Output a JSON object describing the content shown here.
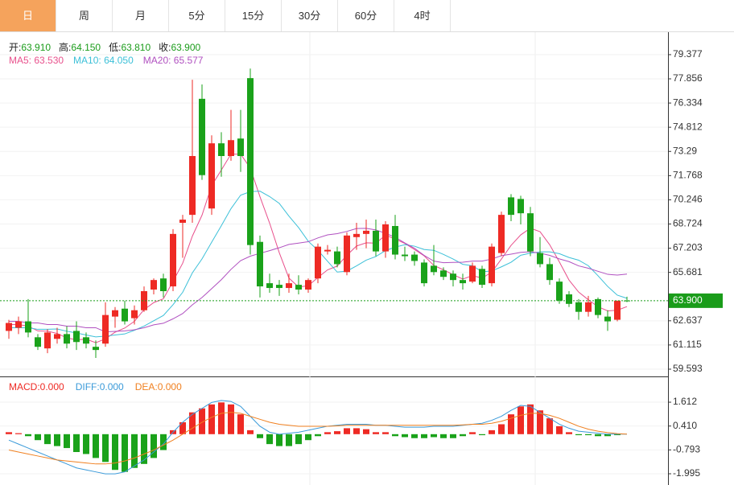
{
  "tabs": [
    "日",
    "周",
    "月",
    "5分",
    "15分",
    "30分",
    "60分",
    "4时"
  ],
  "active_tab": 0,
  "header": [
    {
      "label": "开:",
      "value": "63.910"
    },
    {
      "label": "高:",
      "value": "64.150"
    },
    {
      "label": "低:",
      "value": "63.810"
    },
    {
      "label": "收:",
      "value": "63.900"
    }
  ],
  "header_value_color": "#1a9c1a",
  "chart_data": [
    {
      "type": "candlestick",
      "open": [
        62.0,
        62.2,
        62.6,
        61.6,
        60.9,
        61.5,
        61.8,
        62.0,
        61.6,
        61.0,
        61.2,
        62.9,
        63.4,
        62.8,
        63.3,
        64.6,
        65.3,
        64.8,
        68.8,
        69.3,
        76.6,
        69.7,
        73.8,
        73.0,
        74.1,
        77.9,
        67.6,
        65.0,
        64.9,
        64.7,
        64.9,
        64.6,
        65.3,
        67.0,
        67.0,
        65.7,
        67.9,
        68.1,
        68.3,
        67.0,
        68.6,
        66.8,
        66.8,
        66.3,
        66.1,
        65.8,
        65.6,
        65.2,
        65.1,
        65.9,
        65.0,
        66.9,
        70.4,
        70.3,
        69.4,
        66.9,
        66.2,
        65.1,
        64.3,
        63.8,
        63.2,
        64.0,
        62.9,
        62.7,
        63.91
      ],
      "high": [
        62.7,
        62.9,
        64.0,
        61.8,
        62.1,
        62.2,
        62.3,
        62.6,
        61.9,
        61.4,
        63.8,
        63.5,
        63.9,
        63.6,
        64.8,
        65.3,
        65.6,
        68.4,
        69.3,
        77.8,
        77.5,
        74.3,
        74.5,
        75.9,
        75.9,
        78.5,
        68.0,
        65.6,
        65.2,
        65.6,
        65.5,
        65.3,
        67.5,
        67.4,
        67.3,
        68.2,
        68.8,
        69.0,
        69.0,
        68.9,
        69.3,
        67.3,
        67.0,
        66.5,
        67.4,
        66.0,
        65.8,
        65.6,
        66.3,
        66.1,
        67.5,
        69.5,
        70.6,
        70.5,
        69.8,
        67.9,
        66.6,
        65.3,
        64.5,
        64.0,
        64.2,
        64.1,
        63.3,
        63.9,
        64.15
      ],
      "low": [
        61.5,
        61.8,
        61.6,
        60.8,
        60.6,
        61.2,
        60.9,
        60.8,
        60.9,
        60.3,
        61.0,
        62.2,
        62.4,
        62.4,
        63.2,
        64.3,
        64.1,
        64.5,
        66.6,
        68.8,
        71.5,
        69.3,
        71.7,
        72.7,
        72.0,
        66.8,
        64.1,
        64.4,
        64.2,
        64.4,
        64.3,
        64.4,
        65.0,
        66.8,
        66.0,
        65.5,
        67.1,
        67.2,
        66.7,
        66.6,
        66.5,
        66.4,
        66.1,
        64.8,
        65.5,
        65.2,
        64.8,
        64.6,
        65.0,
        64.7,
        64.8,
        66.7,
        68.9,
        68.7,
        66.7,
        66.0,
        64.9,
        63.7,
        63.5,
        62.7,
        62.9,
        62.8,
        62.0,
        62.6,
        63.81
      ],
      "close": [
        62.5,
        62.6,
        61.9,
        61.0,
        61.9,
        61.8,
        61.2,
        61.3,
        61.2,
        60.8,
        63.0,
        63.3,
        62.6,
        63.3,
        64.5,
        65.2,
        64.5,
        68.1,
        69.0,
        73.0,
        71.8,
        73.8,
        73.0,
        74.0,
        73.0,
        67.4,
        64.8,
        64.7,
        64.7,
        65.0,
        64.6,
        65.2,
        67.3,
        67.1,
        66.2,
        68.0,
        68.1,
        68.3,
        67.0,
        68.7,
        66.8,
        66.7,
        66.4,
        65.0,
        65.7,
        65.4,
        65.2,
        65.0,
        66.1,
        64.9,
        67.3,
        69.3,
        69.3,
        69.4,
        67.0,
        66.2,
        65.2,
        63.9,
        63.7,
        63.2,
        63.8,
        63.0,
        62.6,
        63.9,
        63.9
      ],
      "up_color": "#ee2a24",
      "down_color": "#1aa21a",
      "series": [
        {
          "name": "MA5: 63.530",
          "color": "#e8508c",
          "values": [
            62.4,
            62.4,
            62.3,
            62.0,
            61.98,
            61.84,
            61.56,
            61.44,
            61.48,
            61.26,
            61.5,
            61.92,
            62.18,
            62.6,
            63.34,
            63.78,
            64.02,
            65.12,
            66.26,
            67.96,
            69.28,
            71.14,
            72.12,
            73.12,
            73.12,
            72.24,
            70.44,
            68.78,
            66.92,
            65.32,
            64.76,
            64.84,
            65.36,
            65.84,
            66.08,
            66.76,
            67.34,
            67.54,
            67.52,
            68.02,
            67.78,
            67.5,
            67.12,
            66.72,
            66.12,
            65.84,
            65.54,
            65.26,
            65.48,
            65.32,
            65.7,
            66.52,
            67.38,
            68.04,
            68.46,
            68.24,
            67.42,
            66.34,
            65.2,
            64.44,
            63.96,
            63.52,
            63.26,
            63.3,
            63.53
          ]
        },
        {
          "name": "MA10: 64.050",
          "color": "#3cc0d8",
          "values": [
            62.2,
            62.2,
            62.2,
            62.1,
            62.1,
            62.12,
            61.98,
            61.87,
            61.74,
            61.62,
            61.67,
            61.74,
            61.81,
            62.04,
            62.3,
            62.64,
            62.97,
            63.65,
            64.43,
            65.65,
            66.53,
            67.58,
            68.62,
            69.69,
            70.54,
            70.76,
            70.79,
            70.45,
            70.02,
            69.22,
            68.5,
            67.64,
            67.07,
            66.38,
            65.7,
            65.76,
            66.09,
            66.45,
            66.68,
            67.05,
            67.27,
            67.42,
            67.33,
            67.12,
            67.07,
            66.81,
            66.52,
            66.19,
            66.1,
            65.72,
            65.77,
            66.03,
            66.32,
            66.76,
            66.89,
            66.97,
            66.97,
            66.86,
            66.62,
            66.45,
            66.1,
            65.47,
            64.8,
            64.25,
            64.05
          ]
        },
        {
          "name": "MA20: 65.577",
          "color": "#b050c0",
          "values": [
            62.6,
            62.6,
            62.5,
            62.5,
            62.4,
            62.4,
            62.3,
            62.3,
            62.2,
            62.2,
            61.94,
            61.97,
            62.0,
            62.07,
            62.2,
            62.38,
            62.48,
            62.76,
            63.09,
            63.64,
            64.1,
            64.66,
            65.22,
            65.87,
            66.42,
            66.7,
            66.88,
            67.05,
            67.23,
            67.44,
            67.52,
            67.61,
            67.85,
            68.04,
            68.12,
            68.26,
            68.44,
            68.45,
            68.35,
            68.14,
            67.89,
            67.53,
            67.2,
            66.75,
            66.39,
            66.29,
            66.31,
            66.32,
            66.39,
            66.39,
            66.52,
            66.73,
            66.83,
            66.94,
            66.98,
            66.89,
            66.75,
            66.53,
            66.36,
            66.09,
            65.94,
            65.75,
            65.56,
            65.51,
            65.577
          ]
        }
      ],
      "last_price": {
        "value": 63.9,
        "label": "63.900"
      },
      "last_price_color": "#1a9c1a",
      "ylim": [
        59.137,
        80.69
      ],
      "yticks": [
        79.377,
        77.856,
        76.334,
        74.812,
        73.29,
        71.768,
        70.246,
        68.724,
        67.203,
        65.681,
        62.637,
        61.115,
        59.593
      ],
      "ytick_labels_fixed": null,
      "grid": true
    },
    {
      "type": "macd",
      "series": [
        {
          "name": "MACD:0.000",
          "kind": "bar",
          "color": "#ee2a24",
          "negative_color": "#1aa21a",
          "values": [
            0.1,
            0.05,
            -0.1,
            -0.3,
            -0.5,
            -0.6,
            -0.7,
            -0.9,
            -1.0,
            -1.2,
            -1.4,
            -1.8,
            -1.9,
            -1.7,
            -1.5,
            -1.2,
            -0.8,
            0.2,
            0.6,
            1.1,
            1.3,
            1.5,
            1.6,
            1.5,
            1.0,
            0.2,
            -0.2,
            -0.5,
            -0.6,
            -0.6,
            -0.5,
            -0.3,
            -0.1,
            0.1,
            0.15,
            0.3,
            0.3,
            0.25,
            0.1,
            0.1,
            -0.1,
            -0.15,
            -0.2,
            -0.2,
            -0.15,
            -0.2,
            -0.2,
            -0.1,
            0.1,
            -0.05,
            0.2,
            0.5,
            1.0,
            1.4,
            1.5,
            1.2,
            0.8,
            0.4,
            0.1,
            -0.05,
            -0.05,
            -0.1,
            -0.1,
            -0.05,
            0.0
          ]
        },
        {
          "name": "DIFF:0.000",
          "kind": "line",
          "color": "#3a9ad9",
          "values": [
            -0.3,
            -0.5,
            -0.7,
            -0.9,
            -1.1,
            -1.3,
            -1.5,
            -1.7,
            -1.8,
            -1.9,
            -2.0,
            -2.0,
            -1.9,
            -1.6,
            -1.3,
            -0.9,
            -0.5,
            0.1,
            0.6,
            1.0,
            1.3,
            1.6,
            1.7,
            1.65,
            1.4,
            0.9,
            0.4,
            0.1,
            0.0,
            0.05,
            0.1,
            0.2,
            0.3,
            0.4,
            0.45,
            0.5,
            0.5,
            0.5,
            0.45,
            0.45,
            0.4,
            0.35,
            0.35,
            0.35,
            0.4,
            0.4,
            0.4,
            0.45,
            0.5,
            0.55,
            0.7,
            0.9,
            1.2,
            1.45,
            1.4,
            1.1,
            0.8,
            0.5,
            0.3,
            0.15,
            0.1,
            0.05,
            0.0,
            0.0,
            0.0
          ]
        },
        {
          "name": "DEA:0.000",
          "kind": "line",
          "color": "#f08020",
          "values": [
            -0.8,
            -0.9,
            -1.0,
            -1.1,
            -1.2,
            -1.3,
            -1.35,
            -1.4,
            -1.45,
            -1.5,
            -1.5,
            -1.45,
            -1.35,
            -1.2,
            -1.0,
            -0.8,
            -0.55,
            -0.3,
            0.0,
            0.3,
            0.6,
            0.85,
            1.05,
            1.1,
            1.05,
            0.9,
            0.75,
            0.6,
            0.5,
            0.45,
            0.4,
            0.4,
            0.4,
            0.4,
            0.42,
            0.45,
            0.45,
            0.45,
            0.45,
            0.45,
            0.45,
            0.45,
            0.45,
            0.45,
            0.45,
            0.45,
            0.45,
            0.47,
            0.5,
            0.5,
            0.55,
            0.65,
            0.8,
            0.95,
            1.05,
            1.05,
            0.95,
            0.8,
            0.6,
            0.4,
            0.25,
            0.15,
            0.08,
            0.03,
            0.0
          ]
        }
      ],
      "ylim": [
        -2.44,
        2.83
      ],
      "yticks": [
        1.612,
        {
          "value": 0.41,
          "label": "0.410"
        },
        -0.793,
        -1.995
      ],
      "grid": true
    }
  ]
}
